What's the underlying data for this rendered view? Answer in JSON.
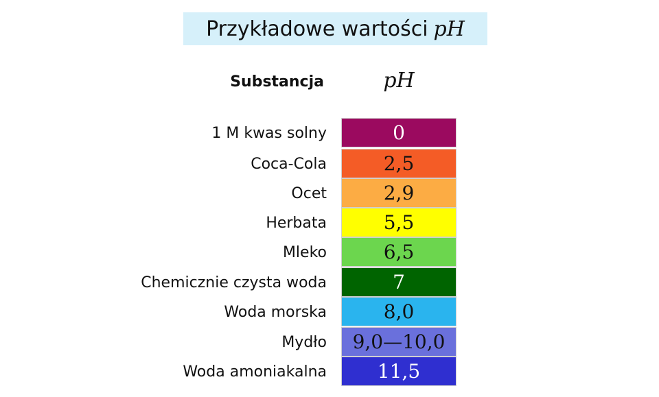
{
  "title": {
    "text": "Przykładowe wartości",
    "math": "pH"
  },
  "columns": {
    "substance": "Substancja",
    "ph": "pH"
  },
  "rows": [
    {
      "substance": "1 M kwas solny",
      "ph": "0",
      "color": "#9b0a5f",
      "text_color": "#ffffff"
    },
    {
      "substance": "Coca-Cola",
      "ph": "2,5",
      "color": "#f45c26",
      "text_color": "#111111"
    },
    {
      "substance": "Ocet",
      "ph": "2,9",
      "color": "#fcac44",
      "text_color": "#111111"
    },
    {
      "substance": "Herbata",
      "ph": "5,5",
      "color": "#ffff00",
      "text_color": "#111111"
    },
    {
      "substance": "Mleko",
      "ph": "6,5",
      "color": "#6cd64e",
      "text_color": "#111111"
    },
    {
      "substance": "Chemicznie czysta woda",
      "ph": "7",
      "color": "#006400",
      "text_color": "#ffffff"
    },
    {
      "substance": "Woda morska",
      "ph": "8,0",
      "color": "#2ab4ee",
      "text_color": "#111111"
    },
    {
      "substance": "Mydło",
      "ph": "9,0—10,0",
      "color": "#6a70dc",
      "text_color": "#111111"
    },
    {
      "substance": "Woda amoniakalna",
      "ph": "11,5",
      "color": "#2f2fd0",
      "text_color": "#ffffff"
    }
  ]
}
